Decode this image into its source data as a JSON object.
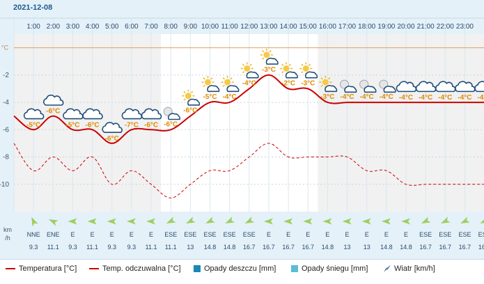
{
  "date": "2021-12-08",
  "hours": [
    "1:00",
    "2:00",
    "3:00",
    "4:00",
    "5:00",
    "6:00",
    "7:00",
    "8:00",
    "9:00",
    "10:00",
    "11:00",
    "12:00",
    "13:00",
    "14:00",
    "15:00",
    "16:00",
    "17:00",
    "18:00",
    "19:00",
    "20:00",
    "21:00",
    "22:00",
    "23:00"
  ],
  "y_axis": {
    "unit_label": "°C",
    "ticks": [
      "-2",
      "-4",
      "-6",
      "-8",
      "-10"
    ],
    "tick_values": [
      -2,
      -4,
      -6,
      -8,
      -10
    ]
  },
  "chart_data": {
    "type": "line",
    "x": [
      "0:00",
      "1:00",
      "2:00",
      "3:00",
      "4:00",
      "5:00",
      "6:00",
      "7:00",
      "8:00",
      "9:00",
      "10:00",
      "11:00",
      "12:00",
      "13:00",
      "14:00",
      "15:00",
      "16:00",
      "17:00",
      "18:00",
      "19:00",
      "20:00",
      "21:00",
      "22:00",
      "23:00",
      "24:00"
    ],
    "ylim": [
      -12,
      1
    ],
    "series": [
      {
        "name": "Temperatura [°C]",
        "color": "#cc0000",
        "style": "solid",
        "values": [
          -5,
          -6,
          -5,
          -6,
          -6,
          -7,
          -6,
          -6,
          -6,
          -5,
          -4,
          -4,
          -3,
          -2,
          -3,
          -3,
          -4,
          -4,
          -4,
          -4,
          -4,
          -4,
          -4,
          -4,
          -4
        ]
      },
      {
        "name": "Temp. odczuwalna [°C]",
        "color": "#cc0000",
        "style": "dashed",
        "values": [
          -7,
          -9,
          -8,
          -9,
          -8,
          -10,
          -9,
          -10,
          -11,
          -10,
          -9,
          -9,
          -8,
          -7,
          -8,
          -8,
          -8,
          -8,
          -9,
          -9,
          -10,
          -10,
          -10,
          -10,
          -10
        ]
      }
    ]
  },
  "temp_labels": [
    "-5°C",
    "-6°C",
    "-5°C",
    "-6°C",
    "-6°C",
    "-7°C",
    "-6°C",
    "-6°C",
    "-6°C",
    "-5°C",
    "-4°C",
    "-4°C",
    "-3°C",
    "-2°C",
    "-3°C",
    "-3°C",
    "-4°C",
    "-4°C",
    "-4°C",
    "-4°C",
    "-4°C",
    "-4°C",
    "-4°C",
    "-4°C"
  ],
  "weather_icons": [
    "cloud-icon",
    "cloud-icon",
    "cloud-icon",
    "cloud-icon",
    "cloud-icon",
    "cloud-icon",
    "cloud-icon",
    "moon-cloud-icon",
    "sun-cloud-icon",
    "sun-cloud-icon",
    "sun-cloud-icon",
    "sun-cloud-icon",
    "sun-cloud-icon",
    "sun-cloud-icon",
    "sun-cloud-icon",
    "sun-cloud-icon",
    "moon-cloud-icon",
    "moon-cloud-icon",
    "moon-cloud-icon",
    "cloud-icon",
    "cloud-icon",
    "cloud-icon",
    "cloud-icon",
    "cloud-icon"
  ],
  "wind": {
    "unit_label_top": "km",
    "unit_label_bottom": "/h",
    "directions": [
      "NNE",
      "ENE",
      "E",
      "E",
      "E",
      "E",
      "E",
      "ESE",
      "ESE",
      "ESE",
      "ESE",
      "ESE",
      "E",
      "E",
      "E",
      "E",
      "E",
      "E",
      "E",
      "E",
      "ESE",
      "ESE",
      "ESE",
      "ESE"
    ],
    "speeds": [
      "9.3",
      "11.1",
      "9.3",
      "11.1",
      "9.3",
      "9.3",
      "11.1",
      "11.1",
      "13",
      "14.8",
      "14.8",
      "16.7",
      "16.7",
      "16.7",
      "16.7",
      "14.8",
      "13",
      "13",
      "14.8",
      "14.8",
      "16.7",
      "16.7",
      "16.7",
      "16.7"
    ]
  },
  "legend": {
    "temperature": "Temperatura [°C]",
    "feels_like": "Temp. odczuwalna [°C]",
    "rain": "Opady deszczu [mm]",
    "snow": "Opady śniegu [mm]",
    "wind": "Wiatr [km/h]"
  },
  "colors": {
    "temp_line": "#cc0000",
    "label_orange": "#e08a00",
    "rain": "#1a87b4",
    "snow": "#5bbcd6",
    "panel_bg": "#e4f1f9",
    "wind_arrow": "#9fce5e",
    "zero_line": "#e0a060"
  }
}
